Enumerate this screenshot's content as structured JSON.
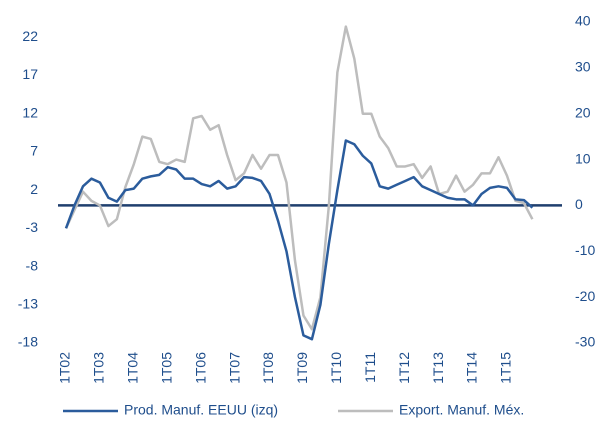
{
  "chart_data": {
    "type": "line",
    "categories": [
      "1T02",
      null,
      null,
      null,
      "1T03",
      null,
      null,
      null,
      "1T04",
      null,
      null,
      null,
      "1T05",
      null,
      null,
      null,
      "1T06",
      null,
      null,
      null,
      "1T07",
      null,
      null,
      null,
      "1T08",
      null,
      null,
      null,
      "1T09",
      null,
      null,
      null,
      "1T10",
      null,
      null,
      null,
      "1T11",
      null,
      null,
      null,
      "1T12",
      null,
      null,
      null,
      "1T13",
      null,
      null,
      null,
      "1T14",
      null,
      null,
      null,
      "1T15",
      null,
      null,
      null
    ],
    "series": [
      {
        "name": "Prod. Manuf. EEUU (izq)",
        "color": "#2b5c9c",
        "values": [
          -3,
          0,
          2.5,
          3.5,
          3,
          1,
          0.5,
          2,
          2.2,
          3.5,
          3.8,
          4,
          5,
          4.7,
          3.5,
          3.5,
          2.8,
          2.5,
          3.2,
          2.2,
          2.5,
          3.7,
          3.6,
          3.2,
          1.5,
          -2,
          -6,
          -12,
          -17,
          -17.5,
          -13,
          -5,
          2,
          8.5,
          8,
          6.5,
          5.5,
          2.5,
          2.2,
          2.7,
          3.2,
          3.7,
          2.5,
          2,
          1.5,
          1,
          0.8,
          0.8,
          0,
          1.5,
          2.3,
          2.5,
          2.3,
          0.8,
          0.7,
          -0.3
        ]
      },
      {
        "name": "Export. Manuf. Méx.",
        "color": "#bdbdbd",
        "axis": "y2",
        "values": [
          -5,
          -1,
          3,
          1,
          0,
          -4.5,
          -3,
          4,
          9,
          15,
          14.5,
          9.5,
          9,
          10,
          9.5,
          19,
          19.5,
          16.5,
          17.5,
          11,
          5.5,
          7,
          11,
          8,
          11,
          11,
          5,
          -12,
          -24,
          -27,
          -20,
          0,
          29,
          39,
          32,
          20,
          20,
          15,
          12.5,
          8.5,
          8.5,
          9,
          6,
          8.5,
          2.5,
          3,
          6.5,
          3,
          4.5,
          7,
          7,
          10.5,
          6.5,
          1,
          0.5,
          -3
        ]
      }
    ],
    "ylim": [
      -18,
      24
    ],
    "yticks": [
      -18,
      -13,
      -8,
      -3,
      2,
      7,
      12,
      17,
      22
    ],
    "y2lim": [
      -30,
      40
    ],
    "y2ticks": [
      -30,
      -20,
      -10,
      0,
      10,
      20,
      30,
      40
    ],
    "grid": false
  }
}
